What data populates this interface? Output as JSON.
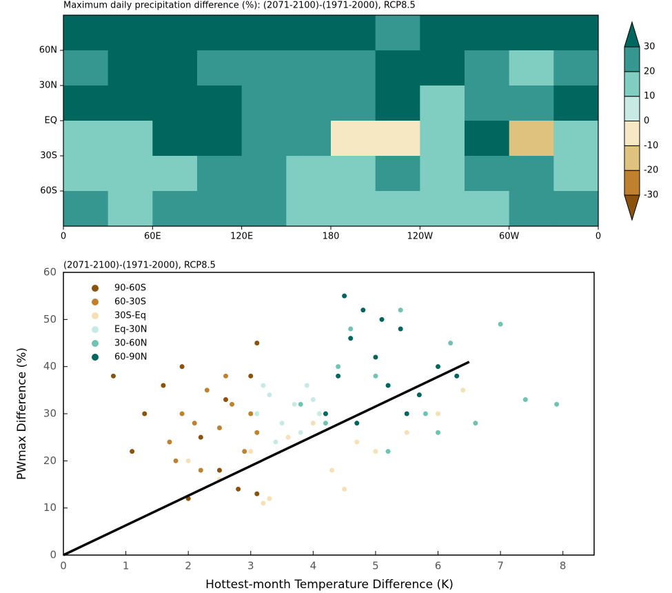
{
  "chart_data": [
    {
      "type": "heatmap",
      "title": "Maximum daily precipitation difference (%): (2071-2100)-(1971-2000), RCP8.5",
      "xlim": [
        0,
        360
      ],
      "xticks": [
        0,
        {
          "value": 60,
          "label": "60E"
        },
        {
          "value": 120,
          "label": "120E"
        },
        180,
        {
          "value": 240,
          "label": "120W"
        },
        {
          "value": 300,
          "label": "60W"
        },
        {
          "value": 360,
          "label": "0"
        }
      ],
      "ylim": [
        -90,
        90
      ],
      "yticks": [
        {
          "value": 60,
          "label": "60N"
        },
        {
          "value": 30,
          "label": "30N"
        },
        {
          "value": 0,
          "label": "EQ"
        },
        {
          "value": -30,
          "label": "30S"
        },
        {
          "value": -60,
          "label": "60S"
        }
      ],
      "x": [
        15,
        45,
        75,
        105,
        135,
        165,
        195,
        225,
        255,
        285,
        315,
        345
      ],
      "y": [
        75,
        45,
        15,
        -15,
        -45,
        -75
      ],
      "values": [
        [
          35,
          32,
          38,
          34,
          30,
          36,
          33,
          28,
          35,
          38,
          32,
          34
        ],
        [
          25,
          33,
          35,
          28,
          22,
          24,
          26,
          30,
          34,
          22,
          18,
          28
        ],
        [
          32,
          30,
          36,
          34,
          28,
          26,
          22,
          30,
          12,
          20,
          24,
          30
        ],
        [
          14,
          18,
          34,
          30,
          22,
          20,
          -5,
          -8,
          16,
          32,
          -12,
          14
        ],
        [
          16,
          12,
          18,
          24,
          20,
          14,
          18,
          22,
          15,
          20,
          25,
          18
        ],
        [
          20,
          18,
          22,
          24,
          26,
          18,
          15,
          12,
          14,
          10,
          22,
          26
        ]
      ],
      "levels": [
        -30,
        -20,
        -10,
        0,
        10,
        20,
        30
      ],
      "colors": [
        "#8c510a",
        "#bf812d",
        "#dfc27d",
        "#f6e8c3",
        "#c7eae5",
        "#80cdc1",
        "#35978f",
        "#01665e"
      ]
    },
    {
      "type": "scatter",
      "title": "(2071-2100)-(1971-2000), RCP8.5",
      "xlabel": "Hottest-month Temperature Difference (K)",
      "ylabel": "PWmax Difference (%)",
      "xlim": [
        0,
        8.5
      ],
      "xticks": [
        0,
        1,
        2,
        3,
        4,
        5,
        6,
        7,
        8
      ],
      "ylim": [
        0,
        60
      ],
      "yticks": [
        0,
        10,
        20,
        30,
        40,
        50,
        60
      ],
      "series": [
        {
          "name": "90-60S",
          "color": "#8c510a",
          "x": [
            1.1,
            1.3,
            1.6,
            1.9,
            2.2,
            2.5,
            2.8,
            3.0,
            3.1,
            0.8,
            2.0,
            2.6,
            3.1
          ],
          "values": [
            22,
            30,
            36,
            40,
            25,
            18,
            14,
            38,
            45,
            38,
            12,
            33,
            13
          ]
        },
        {
          "name": "60-30S",
          "color": "#bf812d",
          "x": [
            1.7,
            1.9,
            2.1,
            2.3,
            2.5,
            2.7,
            2.9,
            3.1,
            2.2,
            2.6,
            1.8,
            3.0
          ],
          "values": [
            24,
            30,
            28,
            35,
            27,
            32,
            22,
            26,
            18,
            38,
            20,
            30
          ]
        },
        {
          "name": "30S-Eq",
          "color": "#f6e0b5",
          "x": [
            2.0,
            2.5,
            3.0,
            3.3,
            3.6,
            4.0,
            4.3,
            4.7,
            5.0,
            5.5,
            6.0,
            6.4,
            3.2,
            4.5
          ],
          "values": [
            20,
            16,
            22,
            12,
            25,
            28,
            18,
            24,
            22,
            26,
            30,
            35,
            11,
            14
          ]
        },
        {
          "name": "Eq-30N",
          "color": "#c7eae5",
          "x": [
            3.1,
            3.3,
            3.5,
            3.7,
            3.9,
            4.1,
            3.4,
            3.8,
            3.2,
            4.0
          ],
          "values": [
            30,
            34,
            28,
            32,
            36,
            30,
            24,
            26,
            36,
            33
          ]
        },
        {
          "name": "30-60N",
          "color": "#6fc3b2",
          "x": [
            3.8,
            4.2,
            4.6,
            5.0,
            5.4,
            5.8,
            6.2,
            6.6,
            7.0,
            7.4,
            7.9,
            6.0,
            5.2,
            4.4
          ],
          "values": [
            32,
            28,
            48,
            38,
            52,
            30,
            45,
            28,
            49,
            33,
            32,
            26,
            22,
            40
          ]
        },
        {
          "name": "60-90N",
          "color": "#01665e",
          "x": [
            4.2,
            4.4,
            4.5,
            4.6,
            4.8,
            5.0,
            5.2,
            5.4,
            5.7,
            6.0,
            6.3,
            4.7,
            5.1,
            5.5
          ],
          "values": [
            30,
            38,
            55,
            46,
            52,
            42,
            36,
            48,
            34,
            40,
            38,
            28,
            50,
            30
          ]
        }
      ],
      "fit_line": {
        "color": "#000000",
        "x": [
          0,
          6.5
        ],
        "values": [
          0,
          41
        ]
      }
    }
  ]
}
